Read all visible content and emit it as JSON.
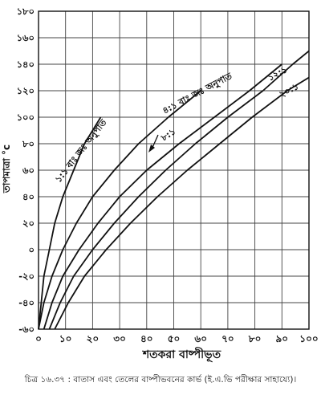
{
  "chart_data": {
    "type": "line",
    "xlabel": "শতকরা বাষ্পীভূত",
    "ylabel": "তাপমাত্রা °c",
    "xlim": [
      0,
      100
    ],
    "ylim": [
      -60,
      180
    ],
    "x_ticks": [
      0,
      10,
      20,
      30,
      40,
      50,
      60,
      70,
      80,
      90,
      100
    ],
    "x_tick_labels": [
      "০",
      "১০",
      "২০",
      "৩০",
      "৪০",
      "৫০",
      "৬০",
      "৭০",
      "৮০",
      "৯০",
      "১০০"
    ],
    "y_ticks": [
      -60,
      -40,
      -20,
      0,
      20,
      40,
      60,
      80,
      100,
      120,
      140,
      160,
      180
    ],
    "y_tick_labels": [
      "-৬০",
      "-৪০",
      "-২০",
      "০",
      "২০",
      "৪০",
      "৬০",
      "৮০",
      "১০০",
      "১২০",
      "১৪০",
      "১৬০",
      "১৮০"
    ],
    "grid": true,
    "series": [
      {
        "name": "১:১",
        "points": [
          [
            0,
            -60
          ],
          [
            1,
            -40
          ],
          [
            2,
            -20
          ],
          [
            4,
            0
          ],
          [
            6,
            20
          ],
          [
            9,
            40
          ],
          [
            13,
            60
          ],
          [
            17,
            80
          ],
          [
            23,
            100
          ]
        ]
      },
      {
        "name": "৪:১",
        "points": [
          [
            0,
            -60
          ],
          [
            2,
            -40
          ],
          [
            5,
            -20
          ],
          [
            9,
            0
          ],
          [
            14,
            20
          ],
          [
            20,
            40
          ],
          [
            28,
            60
          ],
          [
            37,
            80
          ],
          [
            48,
            100
          ],
          [
            60,
            120
          ]
        ]
      },
      {
        "name": "৮:১",
        "points": [
          [
            2,
            -60
          ],
          [
            5,
            -40
          ],
          [
            9,
            -20
          ],
          [
            15,
            0
          ],
          [
            22,
            20
          ],
          [
            30,
            40
          ],
          [
            40,
            60
          ],
          [
            52,
            80
          ],
          [
            65,
            100
          ],
          [
            78,
            120
          ],
          [
            90,
            140
          ]
        ]
      },
      {
        "name": "১২:১",
        "points": [
          [
            4,
            -60
          ],
          [
            8,
            -40
          ],
          [
            13,
            -20
          ],
          [
            20,
            0
          ],
          [
            28,
            20
          ],
          [
            37,
            40
          ],
          [
            47,
            60
          ],
          [
            58,
            80
          ],
          [
            70,
            100
          ],
          [
            83,
            120
          ],
          [
            94,
            140
          ],
          [
            100,
            150
          ]
        ]
      },
      {
        "name": "২০:১",
        "points": [
          [
            6,
            -60
          ],
          [
            11,
            -40
          ],
          [
            17,
            -20
          ],
          [
            25,
            0
          ],
          [
            34,
            20
          ],
          [
            44,
            40
          ],
          [
            55,
            60
          ],
          [
            67,
            80
          ],
          [
            79,
            100
          ],
          [
            92,
            120
          ],
          [
            100,
            130
          ]
        ]
      }
    ],
    "annotations": [
      {
        "text": "১:১ বাঃ জঃ অনুপাত"
      },
      {
        "text": "৪:১ বাঃ জঃ অনুপাত"
      },
      {
        "text": "৮:১"
      },
      {
        "text": "১২:১"
      },
      {
        "text": "২০:১"
      }
    ]
  },
  "caption": "চিত্র ১৬.৩৭ : বাতাস এবং তেলের বাষ্পীভবনের কার্ভ (ই.এ.ভি পরীক্ষার সাহায্যে)।"
}
